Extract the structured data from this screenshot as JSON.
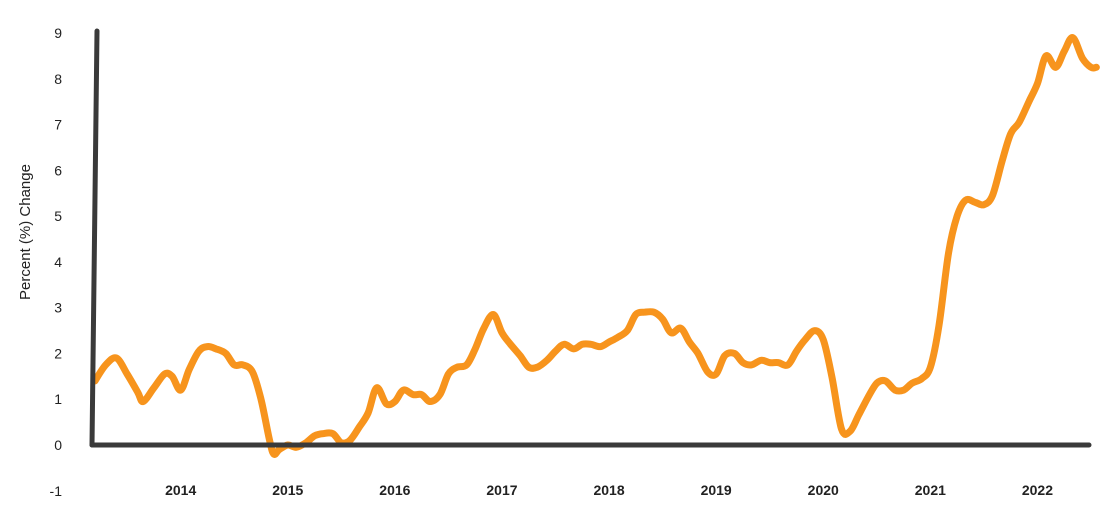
{
  "chart_data": {
    "type": "line",
    "title": "",
    "xlabel": "",
    "ylabel": "Percent (%) Change",
    "xlim": [
      2013.2,
      2022.5
    ],
    "ylim": [
      -1,
      9
    ],
    "y_ticks": [
      "-1",
      "0",
      "1",
      "2",
      "3",
      "4",
      "5",
      "6",
      "7",
      "8",
      "9"
    ],
    "x_ticks": [
      {
        "label": "2014",
        "x": 2014
      },
      {
        "label": "2015",
        "x": 2015
      },
      {
        "label": "2016",
        "x": 2016
      },
      {
        "label": "2017",
        "x": 2017
      },
      {
        "label": "2018",
        "x": 2018
      },
      {
        "label": "2019",
        "x": 2019
      },
      {
        "label": "2020",
        "x": 2020
      },
      {
        "label": "2021",
        "x": 2021
      },
      {
        "label": "2022",
        "x": 2022
      }
    ],
    "grid": false,
    "legend": "none",
    "colors": {
      "line": "#F7941D",
      "axis": "#3a3a3a"
    },
    "series": [
      {
        "color": "#F7941D",
        "points": [
          [
            2013.2,
            1.4
          ],
          [
            2013.3,
            1.75
          ],
          [
            2013.4,
            1.9
          ],
          [
            2013.5,
            1.55
          ],
          [
            2013.6,
            1.15
          ],
          [
            2013.65,
            0.95
          ],
          [
            2013.75,
            1.25
          ],
          [
            2013.85,
            1.55
          ],
          [
            2013.92,
            1.5
          ],
          [
            2014.0,
            1.2
          ],
          [
            2014.08,
            1.65
          ],
          [
            2014.17,
            2.05
          ],
          [
            2014.25,
            2.15
          ],
          [
            2014.33,
            2.1
          ],
          [
            2014.42,
            2.0
          ],
          [
            2014.5,
            1.75
          ],
          [
            2014.58,
            1.75
          ],
          [
            2014.67,
            1.6
          ],
          [
            2014.75,
            1.0
          ],
          [
            2014.83,
            0.1
          ],
          [
            2014.87,
            -0.2
          ],
          [
            2014.92,
            -0.1
          ],
          [
            2015.0,
            0.0
          ],
          [
            2015.08,
            -0.05
          ],
          [
            2015.17,
            0.05
          ],
          [
            2015.25,
            0.2
          ],
          [
            2015.33,
            0.25
          ],
          [
            2015.42,
            0.25
          ],
          [
            2015.5,
            0.05
          ],
          [
            2015.58,
            0.1
          ],
          [
            2015.67,
            0.4
          ],
          [
            2015.75,
            0.7
          ],
          [
            2015.83,
            1.25
          ],
          [
            2015.92,
            0.9
          ],
          [
            2016.0,
            0.95
          ],
          [
            2016.08,
            1.2
          ],
          [
            2016.17,
            1.1
          ],
          [
            2016.25,
            1.1
          ],
          [
            2016.33,
            0.95
          ],
          [
            2016.42,
            1.1
          ],
          [
            2016.5,
            1.55
          ],
          [
            2016.58,
            1.7
          ],
          [
            2016.67,
            1.75
          ],
          [
            2016.75,
            2.1
          ],
          [
            2016.83,
            2.55
          ],
          [
            2016.92,
            2.85
          ],
          [
            2017.0,
            2.45
          ],
          [
            2017.08,
            2.2
          ],
          [
            2017.17,
            1.95
          ],
          [
            2017.25,
            1.7
          ],
          [
            2017.33,
            1.7
          ],
          [
            2017.42,
            1.85
          ],
          [
            2017.5,
            2.05
          ],
          [
            2017.58,
            2.2
          ],
          [
            2017.67,
            2.1
          ],
          [
            2017.75,
            2.2
          ],
          [
            2017.83,
            2.2
          ],
          [
            2017.92,
            2.15
          ],
          [
            2018.0,
            2.25
          ],
          [
            2018.08,
            2.35
          ],
          [
            2018.17,
            2.5
          ],
          [
            2018.25,
            2.85
          ],
          [
            2018.33,
            2.9
          ],
          [
            2018.42,
            2.9
          ],
          [
            2018.5,
            2.75
          ],
          [
            2018.58,
            2.45
          ],
          [
            2018.67,
            2.55
          ],
          [
            2018.75,
            2.25
          ],
          [
            2018.83,
            2.0
          ],
          [
            2018.92,
            1.6
          ],
          [
            2019.0,
            1.55
          ],
          [
            2019.08,
            1.95
          ],
          [
            2019.17,
            2.0
          ],
          [
            2019.25,
            1.8
          ],
          [
            2019.33,
            1.75
          ],
          [
            2019.42,
            1.85
          ],
          [
            2019.5,
            1.8
          ],
          [
            2019.58,
            1.8
          ],
          [
            2019.67,
            1.75
          ],
          [
            2019.75,
            2.05
          ],
          [
            2019.83,
            2.3
          ],
          [
            2019.92,
            2.5
          ],
          [
            2020.0,
            2.3
          ],
          [
            2020.08,
            1.5
          ],
          [
            2020.17,
            0.35
          ],
          [
            2020.25,
            0.3
          ],
          [
            2020.33,
            0.65
          ],
          [
            2020.42,
            1.05
          ],
          [
            2020.5,
            1.35
          ],
          [
            2020.58,
            1.4
          ],
          [
            2020.67,
            1.2
          ],
          [
            2020.75,
            1.2
          ],
          [
            2020.83,
            1.35
          ],
          [
            2020.92,
            1.45
          ],
          [
            2021.0,
            1.7
          ],
          [
            2021.08,
            2.6
          ],
          [
            2021.17,
            4.2
          ],
          [
            2021.25,
            5.0
          ],
          [
            2021.33,
            5.35
          ],
          [
            2021.42,
            5.3
          ],
          [
            2021.5,
            5.25
          ],
          [
            2021.58,
            5.45
          ],
          [
            2021.67,
            6.2
          ],
          [
            2021.75,
            6.8
          ],
          [
            2021.83,
            7.05
          ],
          [
            2021.92,
            7.5
          ],
          [
            2022.0,
            7.9
          ],
          [
            2022.08,
            8.5
          ],
          [
            2022.17,
            8.25
          ],
          [
            2022.25,
            8.6
          ],
          [
            2022.33,
            8.9
          ],
          [
            2022.42,
            8.45
          ],
          [
            2022.5,
            8.25
          ],
          [
            2022.55,
            8.25
          ]
        ]
      }
    ]
  }
}
